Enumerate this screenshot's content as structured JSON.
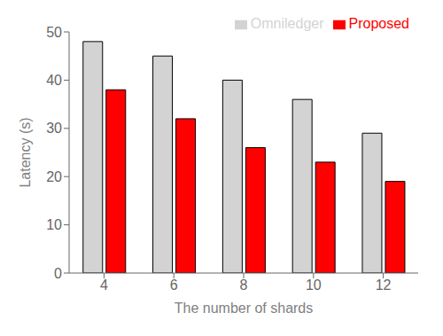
{
  "chart_data": {
    "type": "bar",
    "xlabel": "The number of shards",
    "ylabel": "Latency (s)",
    "categories": [
      4,
      6,
      8,
      10,
      12
    ],
    "series": [
      {
        "name": "Omniledger",
        "color": "#d3d3d3",
        "values": [
          48,
          45,
          40,
          36,
          29
        ]
      },
      {
        "name": "Proposed",
        "color": "#ff0000",
        "values": [
          38,
          32,
          26,
          23,
          19
        ]
      }
    ],
    "ylim": [
      0,
      50
    ],
    "yticks": [
      0,
      10,
      20,
      30,
      40,
      50
    ],
    "grid": false,
    "legend": "top-right"
  }
}
